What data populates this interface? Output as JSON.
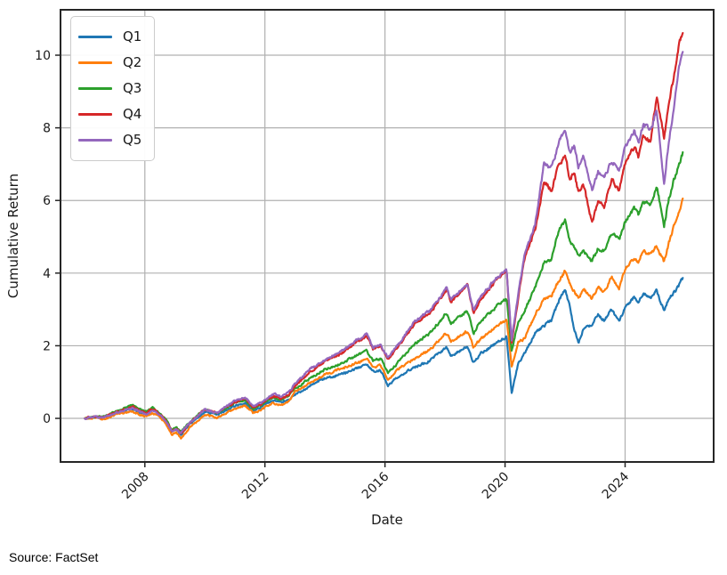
{
  "page": {
    "source_note": "Source: FactSet"
  },
  "style": {
    "grid_color": "#b0b0b0",
    "spine_color": "#262626",
    "text_color": "#1a1a1a",
    "line_width": 2.2,
    "noise_amp": 0.042
  },
  "chart_data": {
    "type": "line",
    "title": "",
    "xlabel": "Date",
    "ylabel": "Cumulative Return",
    "grid": true,
    "legend_position": "upper left",
    "x_unit": "year",
    "xlim": [
      2005.19,
      2026.95
    ],
    "ylim": [
      -1.2,
      11.25
    ],
    "x_ticks": [
      2008,
      2012,
      2016,
      2020,
      2024
    ],
    "x_tick_labels": [
      "2008",
      "2012",
      "2016",
      "2020",
      "2024"
    ],
    "y_ticks": [
      0,
      2,
      4,
      6,
      8,
      10
    ],
    "y_tick_labels": [
      "0",
      "2",
      "4",
      "6",
      "8",
      "10"
    ],
    "x": [
      2006.0,
      2006.3,
      2006.6,
      2007.0,
      2007.3,
      2007.6,
      2007.85,
      2008.05,
      2008.25,
      2008.5,
      2008.7,
      2008.9,
      2009.05,
      2009.2,
      2009.5,
      2009.8,
      2010.0,
      2010.4,
      2010.7,
      2011.0,
      2011.35,
      2011.6,
      2011.85,
      2012.1,
      2012.3,
      2012.55,
      2012.8,
      2013.0,
      2013.5,
      2014.0,
      2014.5,
      2015.0,
      2015.4,
      2015.6,
      2015.85,
      2016.1,
      2016.5,
      2017.0,
      2017.5,
      2018.05,
      2018.2,
      2018.5,
      2018.75,
      2018.95,
      2019.2,
      2019.5,
      2019.75,
      2020.05,
      2020.22,
      2020.45,
      2020.65,
      2021.0,
      2021.3,
      2021.55,
      2021.8,
      2022.0,
      2022.15,
      2022.3,
      2022.45,
      2022.6,
      2022.9,
      2023.1,
      2023.3,
      2023.55,
      2023.8,
      2024.0,
      2024.3,
      2024.45,
      2024.6,
      2024.85,
      2025.05,
      2025.3,
      2025.45,
      2025.6,
      2025.75,
      2025.92
    ],
    "series": [
      {
        "name": "Q1",
        "color": "#1f77b4",
        "values": [
          0.0,
          0.04,
          0.02,
          0.15,
          0.22,
          0.27,
          0.16,
          0.12,
          0.24,
          0.1,
          -0.06,
          -0.38,
          -0.3,
          -0.45,
          -0.15,
          0.05,
          0.18,
          0.1,
          0.22,
          0.35,
          0.42,
          0.2,
          0.3,
          0.44,
          0.5,
          0.44,
          0.52,
          0.65,
          0.9,
          1.1,
          1.2,
          1.35,
          1.5,
          1.3,
          1.32,
          0.9,
          1.2,
          1.4,
          1.6,
          1.95,
          1.72,
          1.85,
          2.0,
          1.52,
          1.8,
          1.95,
          2.1,
          2.25,
          0.7,
          1.55,
          1.78,
          2.35,
          2.55,
          2.7,
          3.25,
          3.55,
          3.1,
          2.45,
          2.1,
          2.45,
          2.6,
          2.85,
          2.7,
          3.0,
          2.65,
          3.05,
          3.35,
          3.2,
          3.45,
          3.3,
          3.5,
          2.95,
          3.3,
          3.45,
          3.6,
          3.85
        ]
      },
      {
        "name": "Q2",
        "color": "#ff7f0e",
        "values": [
          0.0,
          0.02,
          -0.03,
          0.1,
          0.15,
          0.19,
          0.09,
          0.05,
          0.15,
          0.02,
          -0.15,
          -0.45,
          -0.38,
          -0.55,
          -0.25,
          -0.05,
          0.1,
          0.02,
          0.15,
          0.28,
          0.35,
          0.15,
          0.22,
          0.36,
          0.42,
          0.36,
          0.45,
          0.72,
          0.98,
          1.2,
          1.35,
          1.5,
          1.65,
          1.42,
          1.45,
          1.05,
          1.4,
          1.65,
          1.9,
          2.35,
          2.12,
          2.28,
          2.4,
          1.95,
          2.2,
          2.4,
          2.55,
          2.72,
          1.45,
          2.1,
          2.2,
          2.85,
          3.3,
          3.4,
          3.8,
          4.05,
          3.7,
          3.5,
          3.3,
          3.55,
          3.3,
          3.6,
          3.5,
          3.9,
          3.6,
          4.1,
          4.4,
          4.3,
          4.6,
          4.5,
          4.75,
          4.3,
          4.8,
          5.2,
          5.6,
          6.05
        ]
      },
      {
        "name": "Q3",
        "color": "#2ca02c",
        "values": [
          0.0,
          0.05,
          0.04,
          0.18,
          0.28,
          0.35,
          0.24,
          0.18,
          0.3,
          0.15,
          -0.02,
          -0.32,
          -0.25,
          -0.38,
          -0.1,
          0.12,
          0.25,
          0.15,
          0.28,
          0.42,
          0.5,
          0.28,
          0.35,
          0.5,
          0.58,
          0.52,
          0.62,
          0.82,
          1.1,
          1.35,
          1.5,
          1.7,
          1.85,
          1.6,
          1.65,
          1.25,
          1.6,
          2.05,
          2.35,
          2.9,
          2.6,
          2.8,
          2.95,
          2.35,
          2.7,
          2.9,
          3.1,
          3.32,
          1.85,
          2.7,
          2.95,
          3.6,
          4.3,
          4.4,
          5.2,
          5.44,
          4.9,
          4.7,
          4.5,
          4.6,
          4.35,
          4.7,
          4.6,
          5.1,
          4.9,
          5.4,
          5.8,
          5.6,
          6.0,
          5.9,
          6.4,
          5.3,
          6.0,
          6.5,
          6.9,
          7.3
        ]
      },
      {
        "name": "Q4",
        "color": "#d62728",
        "values": [
          0.0,
          0.05,
          0.03,
          0.16,
          0.25,
          0.32,
          0.21,
          0.15,
          0.26,
          0.12,
          -0.05,
          -0.35,
          -0.28,
          -0.42,
          -0.12,
          0.1,
          0.25,
          0.15,
          0.3,
          0.45,
          0.55,
          0.3,
          0.38,
          0.52,
          0.62,
          0.55,
          0.65,
          0.88,
          1.28,
          1.57,
          1.77,
          2.07,
          2.27,
          1.9,
          2.0,
          1.62,
          2.05,
          2.63,
          2.9,
          3.55,
          3.22,
          3.45,
          3.68,
          2.92,
          3.3,
          3.6,
          3.85,
          4.05,
          2.05,
          3.4,
          4.4,
          5.2,
          6.5,
          6.3,
          7.0,
          7.25,
          6.6,
          6.8,
          6.2,
          6.5,
          5.35,
          6.0,
          5.8,
          6.6,
          6.3,
          7.0,
          7.5,
          7.2,
          7.8,
          7.6,
          8.85,
          7.7,
          8.6,
          9.3,
          10.1,
          10.68
        ]
      },
      {
        "name": "Q5",
        "color": "#9467bd",
        "values": [
          0.0,
          0.04,
          0.02,
          0.14,
          0.22,
          0.28,
          0.18,
          0.12,
          0.22,
          0.1,
          -0.08,
          -0.35,
          -0.28,
          -0.4,
          -0.12,
          0.1,
          0.25,
          0.15,
          0.32,
          0.48,
          0.58,
          0.33,
          0.42,
          0.56,
          0.68,
          0.6,
          0.72,
          0.95,
          1.35,
          1.62,
          1.82,
          2.12,
          2.32,
          1.95,
          2.05,
          1.67,
          2.1,
          2.68,
          2.95,
          3.6,
          3.28,
          3.52,
          3.72,
          2.96,
          3.35,
          3.65,
          3.9,
          4.1,
          2.15,
          3.5,
          4.5,
          5.35,
          7.0,
          6.9,
          7.6,
          7.9,
          7.3,
          7.5,
          6.9,
          7.2,
          6.3,
          6.8,
          6.6,
          7.1,
          6.8,
          7.5,
          7.9,
          7.6,
          8.1,
          7.9,
          8.5,
          6.45,
          7.6,
          8.4,
          9.4,
          10.15
        ]
      }
    ]
  }
}
